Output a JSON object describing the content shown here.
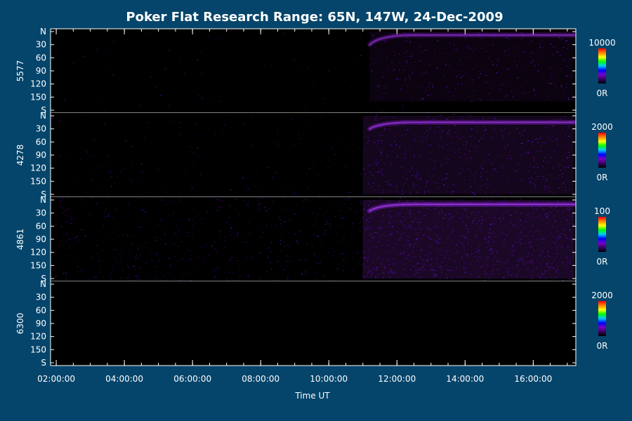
{
  "chart_data": {
    "type": "heatmap",
    "title": "Poker Flat Research Range: 65N, 147W, 24-Dec-2009",
    "xlabel": "Time UT",
    "x_ticks": [
      "02:00:00",
      "04:00:00",
      "06:00:00",
      "08:00:00",
      "10:00:00",
      "12:00:00",
      "14:00:00",
      "16:00:00"
    ],
    "x_range": [
      "01:50:00",
      "17:15:00"
    ],
    "y_ticks": [
      "N",
      "30",
      "60",
      "90",
      "120",
      "150",
      "S"
    ],
    "y_range": [
      0,
      180
    ],
    "colormap": [
      "#000000",
      "#3a0060",
      "#7a00c8",
      "#0000ff",
      "#00c8ff",
      "#00ff00",
      "#ffff00",
      "#ff8000",
      "#ff0000"
    ],
    "panels": [
      {
        "ylabel": "5577",
        "cbar_max": "10000",
        "cbar_min": "0R",
        "base_noise": 0.04,
        "features": [
          {
            "kind": "arc",
            "t_start": 11.2,
            "t_end": 17.2,
            "angle_start": 30,
            "angle_plateau": 8,
            "intensity": 0.55
          },
          {
            "kind": "diffuse",
            "t_start": 11.2,
            "t_end": 17.2,
            "angle_from": 0,
            "angle_to": 160,
            "intensity": 0.12
          }
        ]
      },
      {
        "ylabel": "4278",
        "cbar_max": "2000",
        "cbar_min": "0R",
        "base_noise": 0.1,
        "features": [
          {
            "kind": "arc",
            "t_start": 11.2,
            "t_end": 17.2,
            "angle_start": 30,
            "angle_plateau": 15,
            "intensity": 0.7
          },
          {
            "kind": "diffuse",
            "t_start": 11.0,
            "t_end": 17.2,
            "angle_from": 0,
            "angle_to": 180,
            "intensity": 0.22
          }
        ]
      },
      {
        "ylabel": "4861",
        "cbar_max": "100",
        "cbar_min": "0R",
        "base_noise": 0.35,
        "features": [
          {
            "kind": "arc",
            "t_start": 11.2,
            "t_end": 17.2,
            "angle_start": 25,
            "angle_plateau": 10,
            "intensity": 0.85
          },
          {
            "kind": "diffuse",
            "t_start": 11.0,
            "t_end": 17.2,
            "angle_from": 0,
            "angle_to": 180,
            "intensity": 0.3
          }
        ]
      },
      {
        "ylabel": "6300",
        "cbar_max": "2000",
        "cbar_min": "0R",
        "base_noise": 0.0,
        "features": []
      }
    ]
  }
}
